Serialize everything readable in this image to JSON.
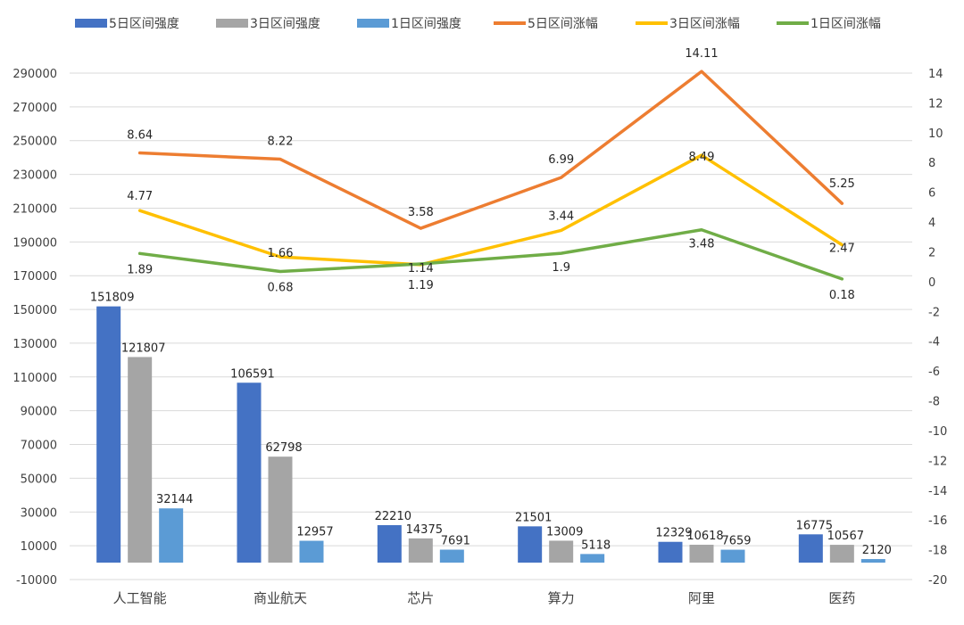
{
  "chart_data": {
    "type": "bar",
    "categories": [
      "人工智能",
      "商业航天",
      "芯片",
      "算力",
      "阿里",
      "医药"
    ],
    "y_left": {
      "ylim": [
        -10000,
        300000
      ],
      "ticks": [
        -10000,
        10000,
        30000,
        50000,
        70000,
        90000,
        110000,
        130000,
        150000,
        170000,
        190000,
        210000,
        230000,
        250000,
        270000,
        290000
      ]
    },
    "y_right": {
      "ylim": [
        -20,
        16
      ],
      "ticks": [
        -20,
        -18,
        -16,
        -14,
        -12,
        -10,
        -8,
        -6,
        -4,
        -2,
        0,
        2,
        4,
        6,
        8,
        10,
        12,
        14
      ]
    },
    "bar_series": [
      {
        "name": "5日区间强度",
        "color": "#4472C4",
        "values": [
          151809,
          106591,
          22210,
          21501,
          12329,
          16775
        ]
      },
      {
        "name": "3日区间强度",
        "color": "#A5A5A5",
        "values": [
          121807,
          62798,
          14375,
          13009,
          10618,
          10567
        ]
      },
      {
        "name": "1日区间强度",
        "color": "#5B9BD5",
        "values": [
          32144,
          12957,
          7691,
          5118,
          7659,
          2120
        ]
      }
    ],
    "line_series": [
      {
        "name": "5日区间涨幅",
        "color": "#ED7D31",
        "values": [
          8.64,
          8.22,
          3.58,
          6.99,
          14.11,
          5.25
        ]
      },
      {
        "name": "3日区间涨幅",
        "color": "#FFC000",
        "values": [
          4.77,
          1.66,
          1.14,
          3.44,
          8.49,
          2.47
        ]
      },
      {
        "name": "1日区间涨幅",
        "color": "#70AD47",
        "values": [
          1.89,
          0.68,
          1.19,
          1.9,
          3.48,
          0.18
        ]
      }
    ],
    "legend_position": "top",
    "grid": true
  }
}
